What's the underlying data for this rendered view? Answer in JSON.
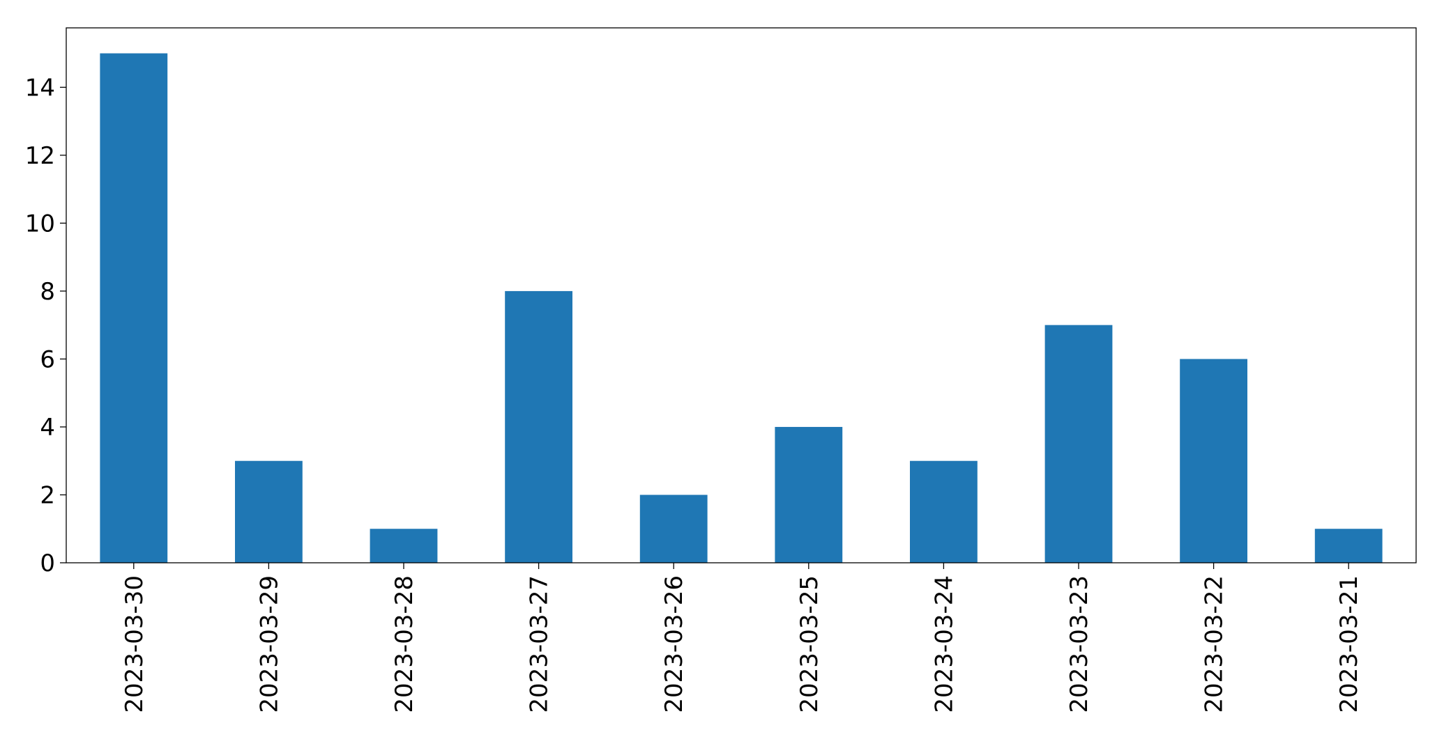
{
  "chart_data": {
    "type": "bar",
    "categories": [
      "2023-03-30",
      "2023-03-29",
      "2023-03-28",
      "2023-03-27",
      "2023-03-26",
      "2023-03-25",
      "2023-03-24",
      "2023-03-23",
      "2023-03-22",
      "2023-03-21"
    ],
    "values": [
      15,
      3,
      1,
      8,
      2,
      4,
      3,
      7,
      6,
      1
    ],
    "color": "#1f77b4",
    "ylim": [
      0,
      15.75
    ],
    "yticks": [
      0,
      2,
      4,
      6,
      8,
      10,
      12,
      14
    ],
    "grid": false
  }
}
